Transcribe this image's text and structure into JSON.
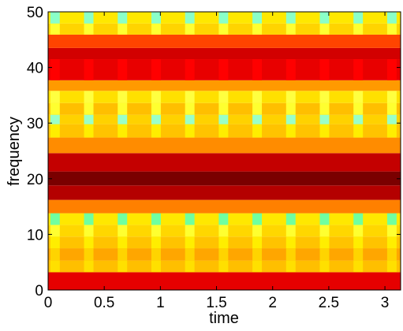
{
  "chart_data": {
    "type": "heatmap",
    "title": "",
    "xlabel": "time",
    "ylabel": "frequency",
    "xlim": [
      0,
      3.14
    ],
    "ylim": [
      0,
      50
    ],
    "xticks": [
      "0",
      "0.5",
      "1",
      "1.5",
      "2",
      "2.5",
      "3"
    ],
    "yticks": [
      "0",
      "10",
      "20",
      "30",
      "40",
      "50"
    ],
    "grid": false,
    "colormap": "jet (upper range: dark red to cyan)",
    "bands": [
      {
        "f0": 0,
        "f1": 3.2,
        "color": "#e60000"
      },
      {
        "f0": 3.2,
        "f1": 5.3,
        "color": "#ffbf00",
        "stripes": "#ffe000"
      },
      {
        "f0": 5.3,
        "f1": 7.5,
        "color": "#ffa600",
        "stripes": "#ffd400"
      },
      {
        "f0": 7.5,
        "f1": 9.6,
        "color": "#ffc300",
        "stripes": "#ffee00"
      },
      {
        "f0": 9.6,
        "f1": 11.7,
        "color": "#ffd700",
        "stripes": "#ffff30"
      },
      {
        "f0": 11.7,
        "f1": 13.8,
        "color": "#ffe800",
        "stripes": "#70ffa0"
      },
      {
        "f0": 13.8,
        "f1": 16.2,
        "color": "#ff8000"
      },
      {
        "f0": 16.2,
        "f1": 18.8,
        "color": "#b40000"
      },
      {
        "f0": 18.8,
        "f1": 21.3,
        "color": "#7a0000"
      },
      {
        "f0": 21.3,
        "f1": 24.6,
        "color": "#c40000"
      },
      {
        "f0": 24.6,
        "f1": 27.4,
        "color": "#ff8c00"
      },
      {
        "f0": 27.4,
        "f1": 29.8,
        "color": "#ffc300",
        "stripes": "#ffee00"
      },
      {
        "f0": 29.8,
        "f1": 31.5,
        "color": "#ffd200",
        "stripes": "#9affc8"
      },
      {
        "f0": 31.5,
        "f1": 33.6,
        "color": "#ffbf00",
        "stripes": "#ffff30"
      },
      {
        "f0": 33.6,
        "f1": 35.8,
        "color": "#ffe000",
        "stripes": "#ffff40"
      },
      {
        "f0": 35.8,
        "f1": 37.7,
        "color": "#ff9a00"
      },
      {
        "f0": 37.7,
        "f1": 41.5,
        "color": "#e80000",
        "stripes": "#ff0000"
      },
      {
        "f0": 41.5,
        "f1": 43.5,
        "color": "#d20000"
      },
      {
        "f0": 43.5,
        "f1": 45.9,
        "color": "#ff4400"
      },
      {
        "f0": 45.9,
        "f1": 47.9,
        "color": "#ffd400",
        "stripes": "#ffff30"
      },
      {
        "f0": 47.9,
        "f1": 50,
        "color": "#ffe800",
        "stripes": "#8affc8"
      }
    ],
    "stripe_period": 0.3,
    "stripe_phase": 0.02
  }
}
